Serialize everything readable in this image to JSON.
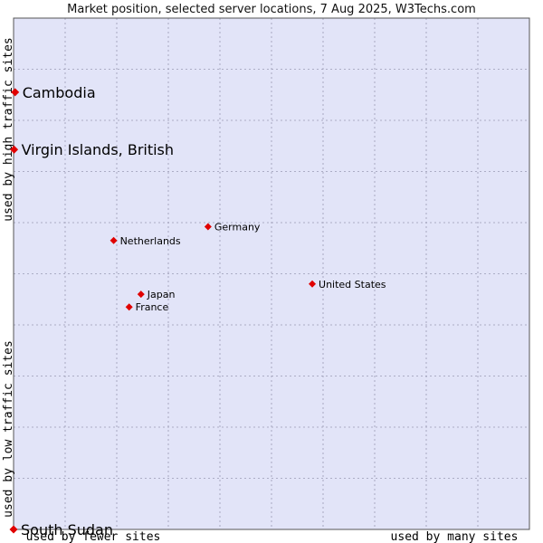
{
  "chart_data": {
    "type": "scatter",
    "title": "Market position, selected server locations, 7 Aug 2025, W3Techs.com",
    "x_low_label": "used by fewer sites",
    "x_high_label": "used by many sites",
    "y_low_label": "used by low traffic sites",
    "y_high_label": "used by high traffic sites",
    "xlim": [
      0,
      100
    ],
    "ylim": [
      0,
      100
    ],
    "grid": true,
    "colors": {
      "plot_bg": "#e2e4f8",
      "grid": "#9a9ab4",
      "frame": "#555555",
      "point": "#e00000"
    },
    "points": [
      {
        "name": "Cambodia",
        "x": 0.3,
        "y": 85.5,
        "size": "large"
      },
      {
        "name": "Virgin Islands, British",
        "x": 0.1,
        "y": 74.3,
        "size": "large"
      },
      {
        "name": "Germany",
        "x": 37.7,
        "y": 59.2,
        "size": "small"
      },
      {
        "name": "Netherlands",
        "x": 19.4,
        "y": 56.5,
        "size": "small"
      },
      {
        "name": "United States",
        "x": 57.9,
        "y": 48.0,
        "size": "small"
      },
      {
        "name": "Japan",
        "x": 24.7,
        "y": 46.0,
        "size": "small"
      },
      {
        "name": "France",
        "x": 22.4,
        "y": 43.5,
        "size": "small"
      },
      {
        "name": "South Sudan",
        "x": 0.0,
        "y": 0.0,
        "size": "large"
      }
    ]
  }
}
